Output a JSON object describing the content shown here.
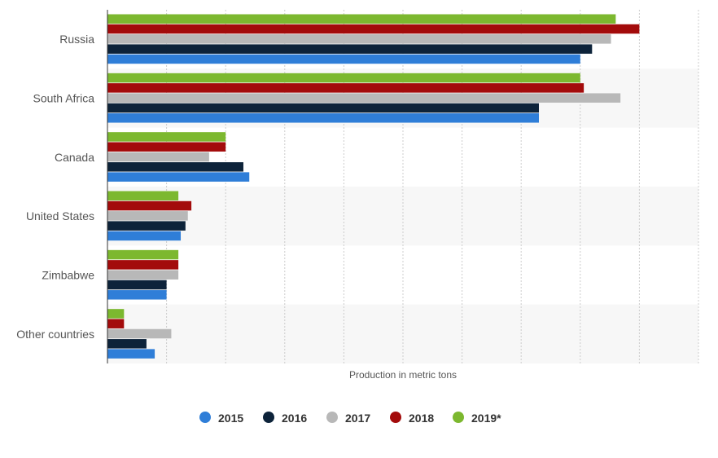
{
  "chart_data": {
    "type": "bar",
    "orientation": "horizontal",
    "title": "",
    "xlabel": "Production in metric tons",
    "ylabel": "",
    "xlim": [
      0,
      50
    ],
    "grid": true,
    "legend_position": "bottom",
    "categories": [
      "Russia",
      "South Africa",
      "Canada",
      "United States",
      "Zimbabwe",
      "Other countries"
    ],
    "series": [
      {
        "name": "2015",
        "color": "#2f7ed8",
        "values": [
          40,
          36.5,
          12,
          6.2,
          5,
          4
        ]
      },
      {
        "name": "2016",
        "color": "#0d233a",
        "values": [
          41,
          36.5,
          11.5,
          6.6,
          5,
          3.3
        ]
      },
      {
        "name": "2017",
        "color": "#b8b8b8",
        "values": [
          42.6,
          43.4,
          8.6,
          6.8,
          6,
          5.4
        ]
      },
      {
        "name": "2018",
        "color": "#a30b0b",
        "values": [
          45,
          40.3,
          10,
          7.1,
          6,
          1.4
        ]
      },
      {
        "name": "2019*",
        "color": "#7cb82f",
        "values": [
          43,
          40,
          10,
          6,
          6,
          1.4
        ]
      }
    ]
  }
}
